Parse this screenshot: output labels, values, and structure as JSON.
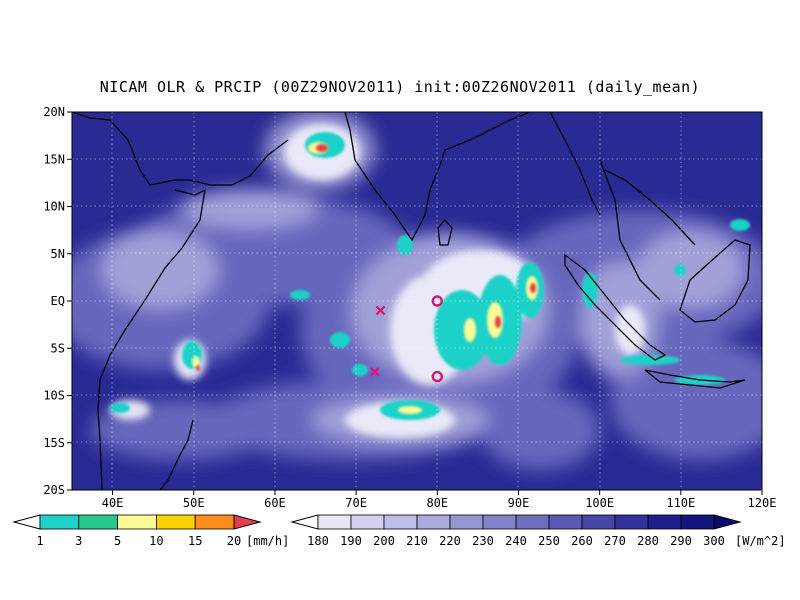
{
  "title": "NICAM OLR & PRCIP (00Z29NOV2011) init:00Z26NOV2011 (daily_mean)",
  "axes": {
    "lat_labels": [
      "20N",
      "15N",
      "10N",
      "5N",
      "EQ",
      "5S",
      "10S",
      "15S",
      "20S"
    ],
    "lon_labels": [
      "40E",
      "50E",
      "60E",
      "70E",
      "80E",
      "90E",
      "100E",
      "110E",
      "120E"
    ],
    "lat_values": [
      20,
      15,
      10,
      5,
      0,
      -5,
      -10,
      -15,
      -20
    ],
    "lon_values": [
      40,
      50,
      60,
      70,
      80,
      90,
      100,
      110,
      120
    ],
    "lon_range": [
      35,
      120
    ],
    "lat_range": [
      -20,
      20
    ],
    "grid": true
  },
  "precip_legend": {
    "unit": "[mm/h]",
    "labels": [
      "1",
      "3",
      "5",
      "10",
      "15",
      "20"
    ],
    "colors": [
      "#ffffff",
      "#1ed2c8",
      "#28c88c",
      "#fafa96",
      "#fad200",
      "#fa8c1e",
      "#e63c50"
    ]
  },
  "olr_legend": {
    "unit": "[W/m^2]",
    "labels": [
      "180",
      "190",
      "200",
      "210",
      "220",
      "230",
      "240",
      "250",
      "260",
      "270",
      "280",
      "290",
      "300"
    ],
    "colors": [
      "#ffffff",
      "#e6e6f5",
      "#d2d2ee",
      "#bebee6",
      "#aaaadc",
      "#9696d2",
      "#8282c8",
      "#6e6ebe",
      "#5a5ab4",
      "#4646a6",
      "#32329a",
      "#1e1e8c",
      "#14147d",
      "#0a0a6e"
    ]
  },
  "markers": [
    {
      "type": "x",
      "lon": 73,
      "lat": -1,
      "color": "#dc1478"
    },
    {
      "type": "x",
      "lon": 72.3,
      "lat": -7.5,
      "color": "#dc1478"
    },
    {
      "type": "circle",
      "lon": 80,
      "lat": 0,
      "color": "#dc1478"
    },
    {
      "type": "circle",
      "lon": 80,
      "lat": -8,
      "color": "#dc1478"
    }
  ]
}
